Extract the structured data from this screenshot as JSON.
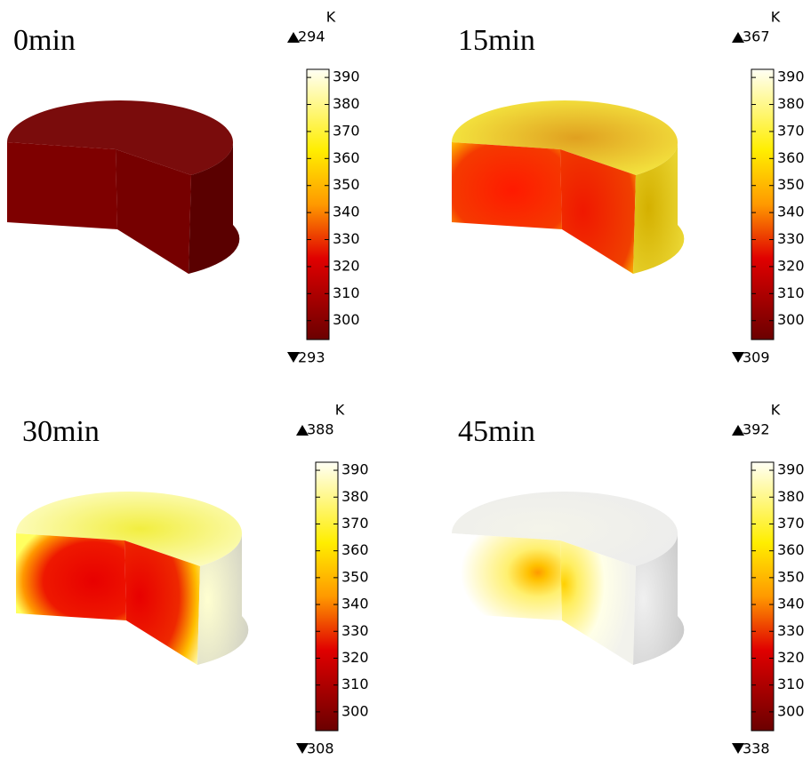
{
  "panels": [
    {
      "title": "0min",
      "unit": "K",
      "max": 294,
      "min": 293
    },
    {
      "title": "15min",
      "unit": "K",
      "max": 367,
      "min": 309
    },
    {
      "title": "30min",
      "unit": "K",
      "max": 388,
      "min": 308
    },
    {
      "title": "45min",
      "unit": "K",
      "max": 392,
      "min": 338
    }
  ],
  "colorbar": {
    "range": [
      293,
      393
    ],
    "ticks": [
      300,
      310,
      320,
      330,
      340,
      350,
      360,
      370,
      380,
      390
    ]
  }
}
